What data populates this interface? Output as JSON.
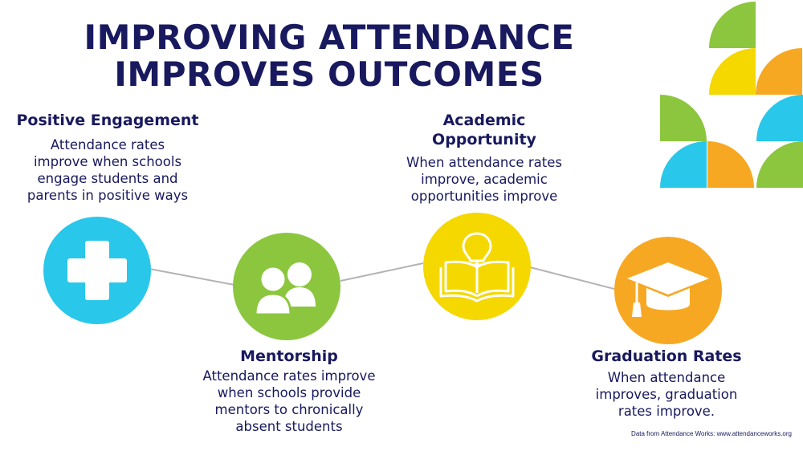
{
  "title_line1": "IMPROVING ATTENDANCE",
  "title_line2": "IMPROVES OUTCOMES",
  "steps": [
    {
      "heading": "Positive Engagement",
      "description": [
        "Attendance rates",
        "improve when schools",
        "engage students and",
        "parents in positive ways"
      ],
      "icon": "plus-icon",
      "color": "#29c7ea"
    },
    {
      "heading": "Mentorship",
      "description": [
        "Attendance rates improve",
        "when schools provide",
        "mentors to chronically",
        "absent students"
      ],
      "icon": "people-icon",
      "color": "#8cc63f"
    },
    {
      "heading_lines": [
        "Academic",
        "Opportunity"
      ],
      "description": [
        "When attendance rates",
        "improve, academic",
        "opportunities improve"
      ],
      "icon": "book-lightbulb-icon",
      "color": "#f4d800"
    },
    {
      "heading": "Graduation Rates",
      "description": [
        "When attendance",
        "improves, graduation",
        "rates improve."
      ],
      "icon": "graduation-cap-icon",
      "color": "#f7a823"
    }
  ],
  "source": "Data from Attendance Works: www.attendanceworks.org",
  "colors": {
    "navy": "#18195e",
    "blue": "#29c7ea",
    "green": "#8cc63f",
    "yellow": "#f4d800",
    "orange": "#f7a823",
    "connector": "#b3b3b3"
  }
}
